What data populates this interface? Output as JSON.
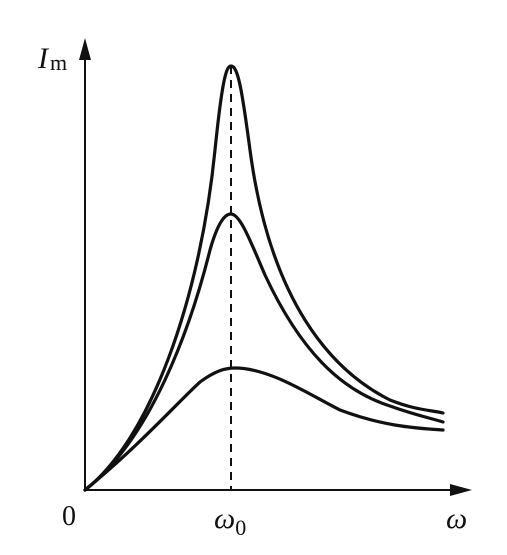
{
  "axes": {
    "y_label": {
      "symbol": "I",
      "subscript": "m"
    },
    "x_label": "ω",
    "origin": "0"
  },
  "markers": [
    {
      "symbol": "ω",
      "subscript": "0"
    }
  ]
}
